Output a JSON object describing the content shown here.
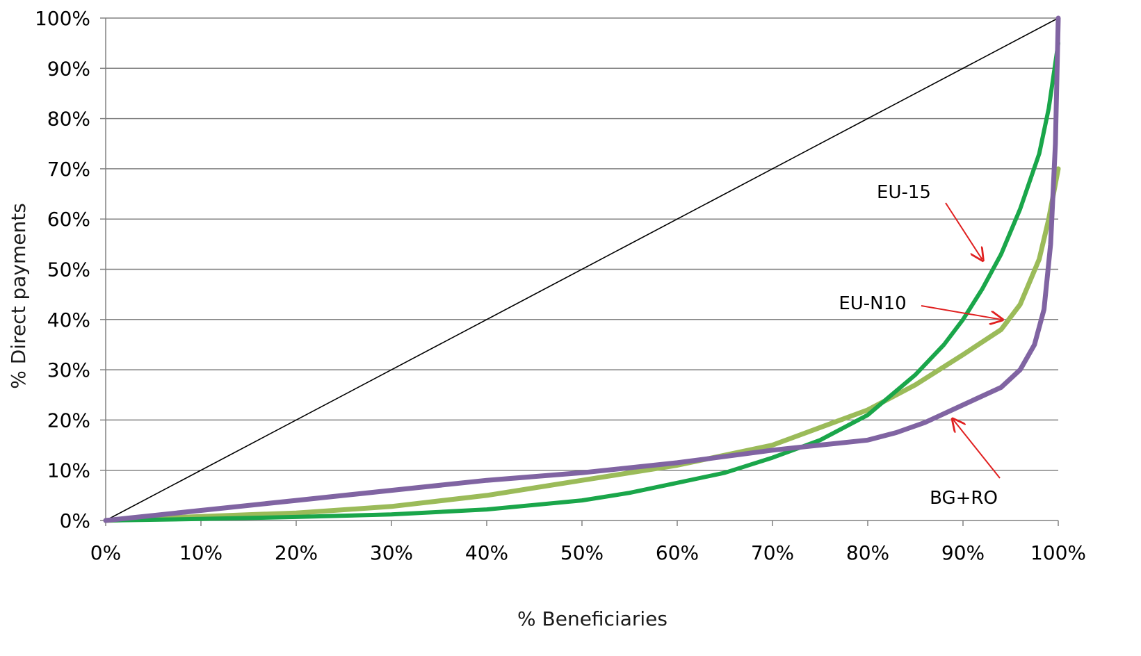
{
  "chart_data": {
    "type": "line",
    "title": "",
    "xlabel": "% Beneficiaries",
    "ylabel": "% Direct payments",
    "xlim": [
      0,
      100
    ],
    "ylim": [
      0,
      100
    ],
    "x_ticks": [
      "0%",
      "10%",
      "20%",
      "30%",
      "40%",
      "50%",
      "60%",
      "70%",
      "80%",
      "90%",
      "100%"
    ],
    "y_ticks": [
      "0%",
      "10%",
      "20%",
      "30%",
      "40%",
      "50%",
      "60%",
      "70%",
      "80%",
      "90%",
      "100%"
    ],
    "grid": "horizontal",
    "legend": "none",
    "colors": {
      "eu15": "#1aa64a",
      "eun10": "#9bbb59",
      "bgro": "#8064a2",
      "equality": "#000000",
      "arrow": "#e02020",
      "grid": "#808080"
    },
    "series": [
      {
        "key": "equality",
        "points": [
          [
            0,
            0
          ],
          [
            100,
            100
          ]
        ]
      },
      {
        "key": "eu15",
        "points": [
          [
            0,
            0
          ],
          [
            10,
            0.3
          ],
          [
            20,
            0.7
          ],
          [
            30,
            1.2
          ],
          [
            40,
            2.2
          ],
          [
            50,
            4
          ],
          [
            55,
            5.5
          ],
          [
            60,
            7.5
          ],
          [
            65,
            9.5
          ],
          [
            70,
            12.5
          ],
          [
            75,
            16
          ],
          [
            80,
            21
          ],
          [
            85,
            29
          ],
          [
            88,
            35
          ],
          [
            90,
            40
          ],
          [
            92,
            46
          ],
          [
            94,
            53
          ],
          [
            96,
            62
          ],
          [
            98,
            73
          ],
          [
            99,
            82
          ],
          [
            100,
            95
          ]
        ]
      },
      {
        "key": "eun10",
        "points": [
          [
            0,
            0
          ],
          [
            10,
            0.8
          ],
          [
            20,
            1.5
          ],
          [
            30,
            2.8
          ],
          [
            40,
            5
          ],
          [
            50,
            8
          ],
          [
            60,
            11
          ],
          [
            70,
            15
          ],
          [
            75,
            18.5
          ],
          [
            80,
            22
          ],
          [
            85,
            27
          ],
          [
            90,
            33
          ],
          [
            94,
            38
          ],
          [
            96,
            43
          ],
          [
            98,
            52
          ],
          [
            99,
            60
          ],
          [
            100,
            70
          ]
        ]
      },
      {
        "key": "bgro",
        "points": [
          [
            0,
            0
          ],
          [
            10,
            2
          ],
          [
            20,
            4
          ],
          [
            30,
            6
          ],
          [
            40,
            8
          ],
          [
            50,
            9.5
          ],
          [
            60,
            11.5
          ],
          [
            70,
            14
          ],
          [
            75,
            15
          ],
          [
            80,
            16
          ],
          [
            83,
            17.5
          ],
          [
            86,
            19.5
          ],
          [
            90,
            23
          ],
          [
            94,
            26.5
          ],
          [
            96,
            30
          ],
          [
            97.5,
            35
          ],
          [
            98.5,
            42
          ],
          [
            99.2,
            55
          ],
          [
            99.7,
            75
          ],
          [
            100,
            100
          ]
        ]
      }
    ],
    "annotations": [
      {
        "text": "EU-15",
        "series": "eu15",
        "points_to": [
          92,
          52
        ]
      },
      {
        "text": "EU-N10",
        "series": "eun10",
        "points_to": [
          94,
          40
        ]
      },
      {
        "text": "BG+RO",
        "series": "bgro",
        "points_to": [
          89,
          20
        ]
      }
    ]
  }
}
